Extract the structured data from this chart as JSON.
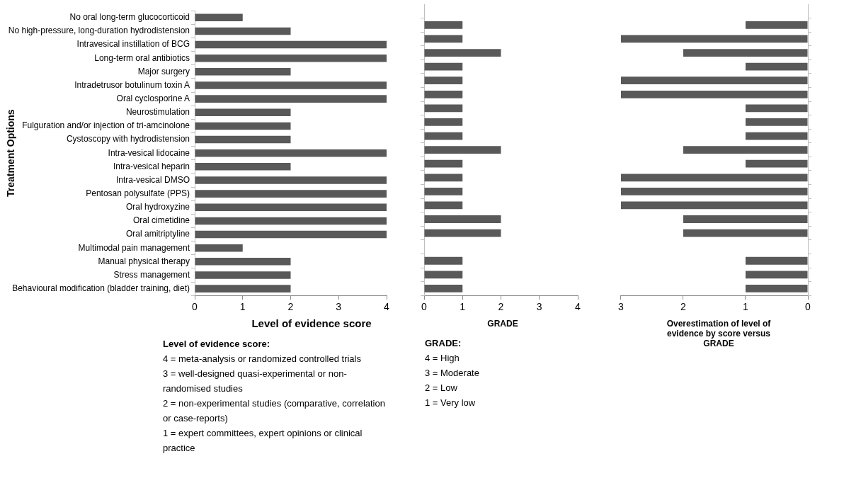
{
  "chart_data": [
    {
      "type": "bar",
      "orientation": "horizontal",
      "ylabel": "Treatment Options",
      "xlabel": "Level of evidence score",
      "categories": [
        "No oral long-term glucocorticoid",
        "No high-pressure, long-duration hydrodistension",
        "Intravesical instillation of BCG",
        "Long-term oral antibiotics",
        "Major surgery",
        "Intradetrusor botulinum toxin A",
        "Oral cyclosporine A",
        "Neurostimulation",
        "Fulguration and/or injection of tri-amcinolone",
        "Cystoscopy with hydrodistension",
        "Intra-vesical lidocaine",
        "Intra-vesical heparin",
        "Intra-vesical DMSO",
        "Pentosan polysulfate (PPS)",
        "Oral hydroxyzine",
        "Oral cimetidine",
        "Oral amitriptyline",
        "Multimodal pain management",
        "Manual physical therapy",
        "Stress management",
        "Behavioural modification (bladder training, diet)"
      ],
      "values": [
        1,
        2,
        4,
        4,
        2,
        4,
        4,
        2,
        2,
        2,
        4,
        2,
        4,
        4,
        4,
        4,
        4,
        1,
        2,
        2,
        2
      ],
      "color": "#595959",
      "xlim": [
        0,
        4
      ],
      "xticks": [
        0,
        1,
        2,
        3,
        4
      ],
      "grid": false,
      "legend": false,
      "annotations": [
        "Level of evidence score:",
        "4 = meta-analysis or randomized controlled trials",
        "3 = well-designed quasi-experimental or non-randomised studies",
        "2 = non-experimental studies (comparative, correlation or case-reports)",
        "1 = expert committees, expert opinions or clinical practice"
      ]
    },
    {
      "type": "bar",
      "orientation": "horizontal",
      "xlabel": "GRADE",
      "categories": [
        null,
        null,
        null,
        null,
        null,
        null,
        null,
        null,
        null,
        null,
        null,
        null,
        null,
        null,
        null,
        null,
        null,
        null,
        null,
        null,
        null
      ],
      "values": [
        null,
        1,
        1,
        2,
        1,
        1,
        1,
        1,
        1,
        1,
        2,
        1,
        1,
        1,
        1,
        2,
        2,
        null,
        1,
        1,
        1
      ],
      "color": "#595959",
      "xlim": [
        0,
        4
      ],
      "xticks": [
        0,
        1,
        2,
        3,
        4
      ],
      "grid": false,
      "legend": false,
      "tick_labels": "x",
      "annotations": [
        "GRADE:",
        "4 = High",
        "3 = Moderate",
        "2 = Low",
        "1 = Very low"
      ]
    },
    {
      "type": "bar",
      "orientation": "horizontal",
      "xlabel": "Overestimation of level of evidence by score versus GRADE",
      "categories": [
        null,
        null,
        null,
        null,
        null,
        null,
        null,
        null,
        null,
        null,
        null,
        null,
        null,
        null,
        null,
        null,
        null,
        null,
        null,
        null,
        null
      ],
      "values": [
        null,
        1,
        3,
        2,
        1,
        3,
        3,
        1,
        1,
        1,
        2,
        1,
        3,
        3,
        3,
        2,
        2,
        null,
        1,
        1,
        1
      ],
      "color": "#595959",
      "xlim": [
        3,
        0
      ],
      "xticks": [
        3,
        2,
        1,
        0
      ],
      "grid": false,
      "legend": false,
      "tick_labels": "x"
    }
  ]
}
